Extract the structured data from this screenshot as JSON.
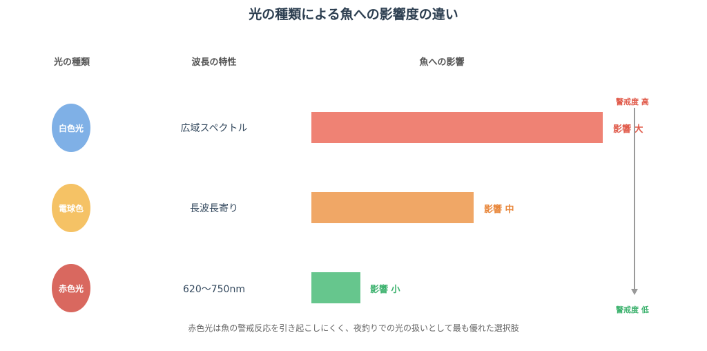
{
  "title": "光の種類による魚への影響度の違い",
  "headers": {
    "light_type": "光の種類",
    "wavelength": "波長の特性",
    "effect": "魚への影響"
  },
  "rows": [
    {
      "light": "白色光",
      "property": "広域スペクトル",
      "effect_label": "影響 大",
      "color": "#7fb0e6",
      "bar_color": "#ef8274",
      "label_color": "#e05a4a"
    },
    {
      "light": "電球色",
      "property": "長波長寄り",
      "effect_label": "影響 中",
      "color": "#f5c265",
      "bar_color": "#f0a766",
      "label_color": "#e8863a"
    },
    {
      "light": "赤色光",
      "property": "620〜750nm",
      "effect_label": "影響 小",
      "color": "#d9685f",
      "bar_color": "#66c68d",
      "label_color": "#3db26e"
    }
  ],
  "alert_scale": {
    "high": "警戒度 高",
    "low": "警戒度 低",
    "high_color": "#e05a4a",
    "low_color": "#3db26e"
  },
  "caption": "赤色光は魚の警戒反応を引き起こしにくく、夜釣りでの光の扱いとして最も優れた選択肢"
}
